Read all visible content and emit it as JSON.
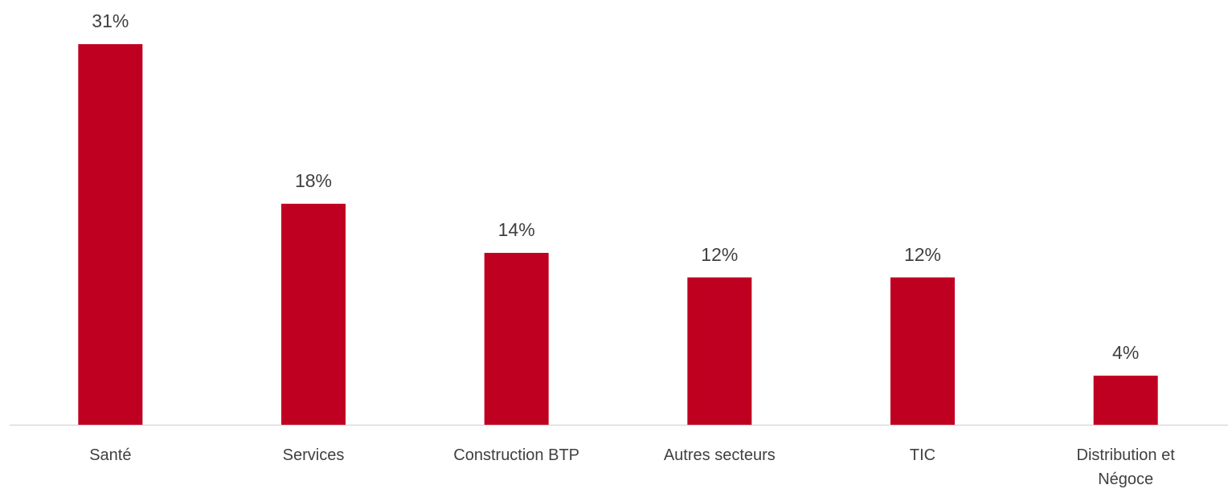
{
  "chart_data": {
    "type": "bar",
    "categories": [
      "Santé",
      "Services",
      "Construction BTP",
      "Autres secteurs",
      "TIC",
      "Distribution et Négoce"
    ],
    "values": [
      31,
      18,
      14,
      12,
      12,
      4
    ],
    "value_labels": [
      "31%",
      "18%",
      "14%",
      "12%",
      "12%",
      "4%"
    ],
    "color": "#c00020"
  }
}
